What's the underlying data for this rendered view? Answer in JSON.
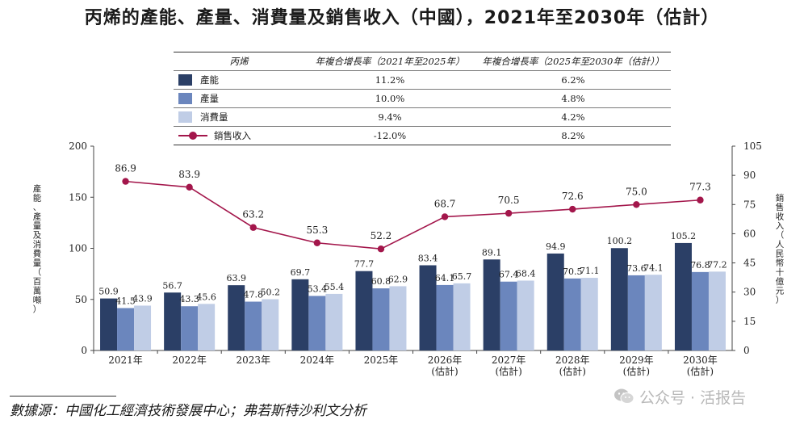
{
  "title": "丙烯的產能、產量、消費量及銷售收入（中國），2021年至2030年（估計）",
  "legend_table": {
    "header": [
      "丙烯",
      "年複合增長率（2021年至2025年）",
      "年複合增長率（2025年至2030年（估計））"
    ],
    "rows": [
      {
        "name": "產能",
        "cagr_2021_2025": "11.2%",
        "cagr_2025_2030": "6.2%"
      },
      {
        "name": "產量",
        "cagr_2021_2025": "10.0%",
        "cagr_2025_2030": "4.8%"
      },
      {
        "name": "消費量",
        "cagr_2021_2025": "9.4%",
        "cagr_2025_2030": "4.2%"
      },
      {
        "name": "銷售收入",
        "cagr_2021_2025": "-12.0%",
        "cagr_2025_2030": "8.2%"
      }
    ]
  },
  "chart_data": {
    "type": "bar",
    "categories": [
      "2021年",
      "2022年",
      "2023年",
      "2024年",
      "2025年",
      "2026年\n(估計)",
      "2027年\n(估計)",
      "2028年\n(估計)",
      "2029年\n(估計)",
      "2030年\n(估計)"
    ],
    "series": [
      {
        "name": "產能",
        "type": "bar",
        "axis": "left",
        "color": "#2b3f66",
        "values": [
          50.9,
          56.7,
          63.9,
          69.7,
          77.7,
          83.4,
          89.1,
          94.9,
          100.2,
          105.2
        ]
      },
      {
        "name": "產量",
        "type": "bar",
        "axis": "left",
        "color": "#6b86bd",
        "values": [
          41.5,
          43.3,
          47.8,
          53.4,
          60.8,
          64.1,
          67.4,
          70.5,
          73.6,
          76.8
        ]
      },
      {
        "name": "消費量",
        "type": "bar",
        "axis": "left",
        "color": "#c0cde6",
        "values": [
          43.9,
          45.6,
          50.2,
          55.4,
          62.9,
          65.7,
          68.4,
          71.1,
          74.1,
          77.2
        ]
      },
      {
        "name": "銷售收入",
        "type": "line",
        "axis": "right",
        "color": "#a3164b",
        "values": [
          86.9,
          83.9,
          63.2,
          55.3,
          52.2,
          68.7,
          70.5,
          72.6,
          75.0,
          77.3
        ]
      }
    ],
    "ylabel": "產能、產量及消費量（百萬噸）",
    "ylim": [
      0,
      200
    ],
    "yticks": [
      0,
      50,
      100,
      150,
      200
    ],
    "y2label": "銷售收入（人民幣十億元）",
    "y2lim": [
      0,
      105
    ],
    "y2ticks": [
      0,
      15,
      30,
      45,
      60,
      75,
      90,
      105
    ],
    "grid": false,
    "legend": "top"
  },
  "source": "數據源：中國化工經濟技術發展中心；弗若斯特沙利文分析",
  "watermark": "公众号 · 活报告",
  "colors": {
    "capacity": "#2b3f66",
    "output": "#6b86bd",
    "consumption": "#c0cde6",
    "revenue": "#a3164b"
  }
}
